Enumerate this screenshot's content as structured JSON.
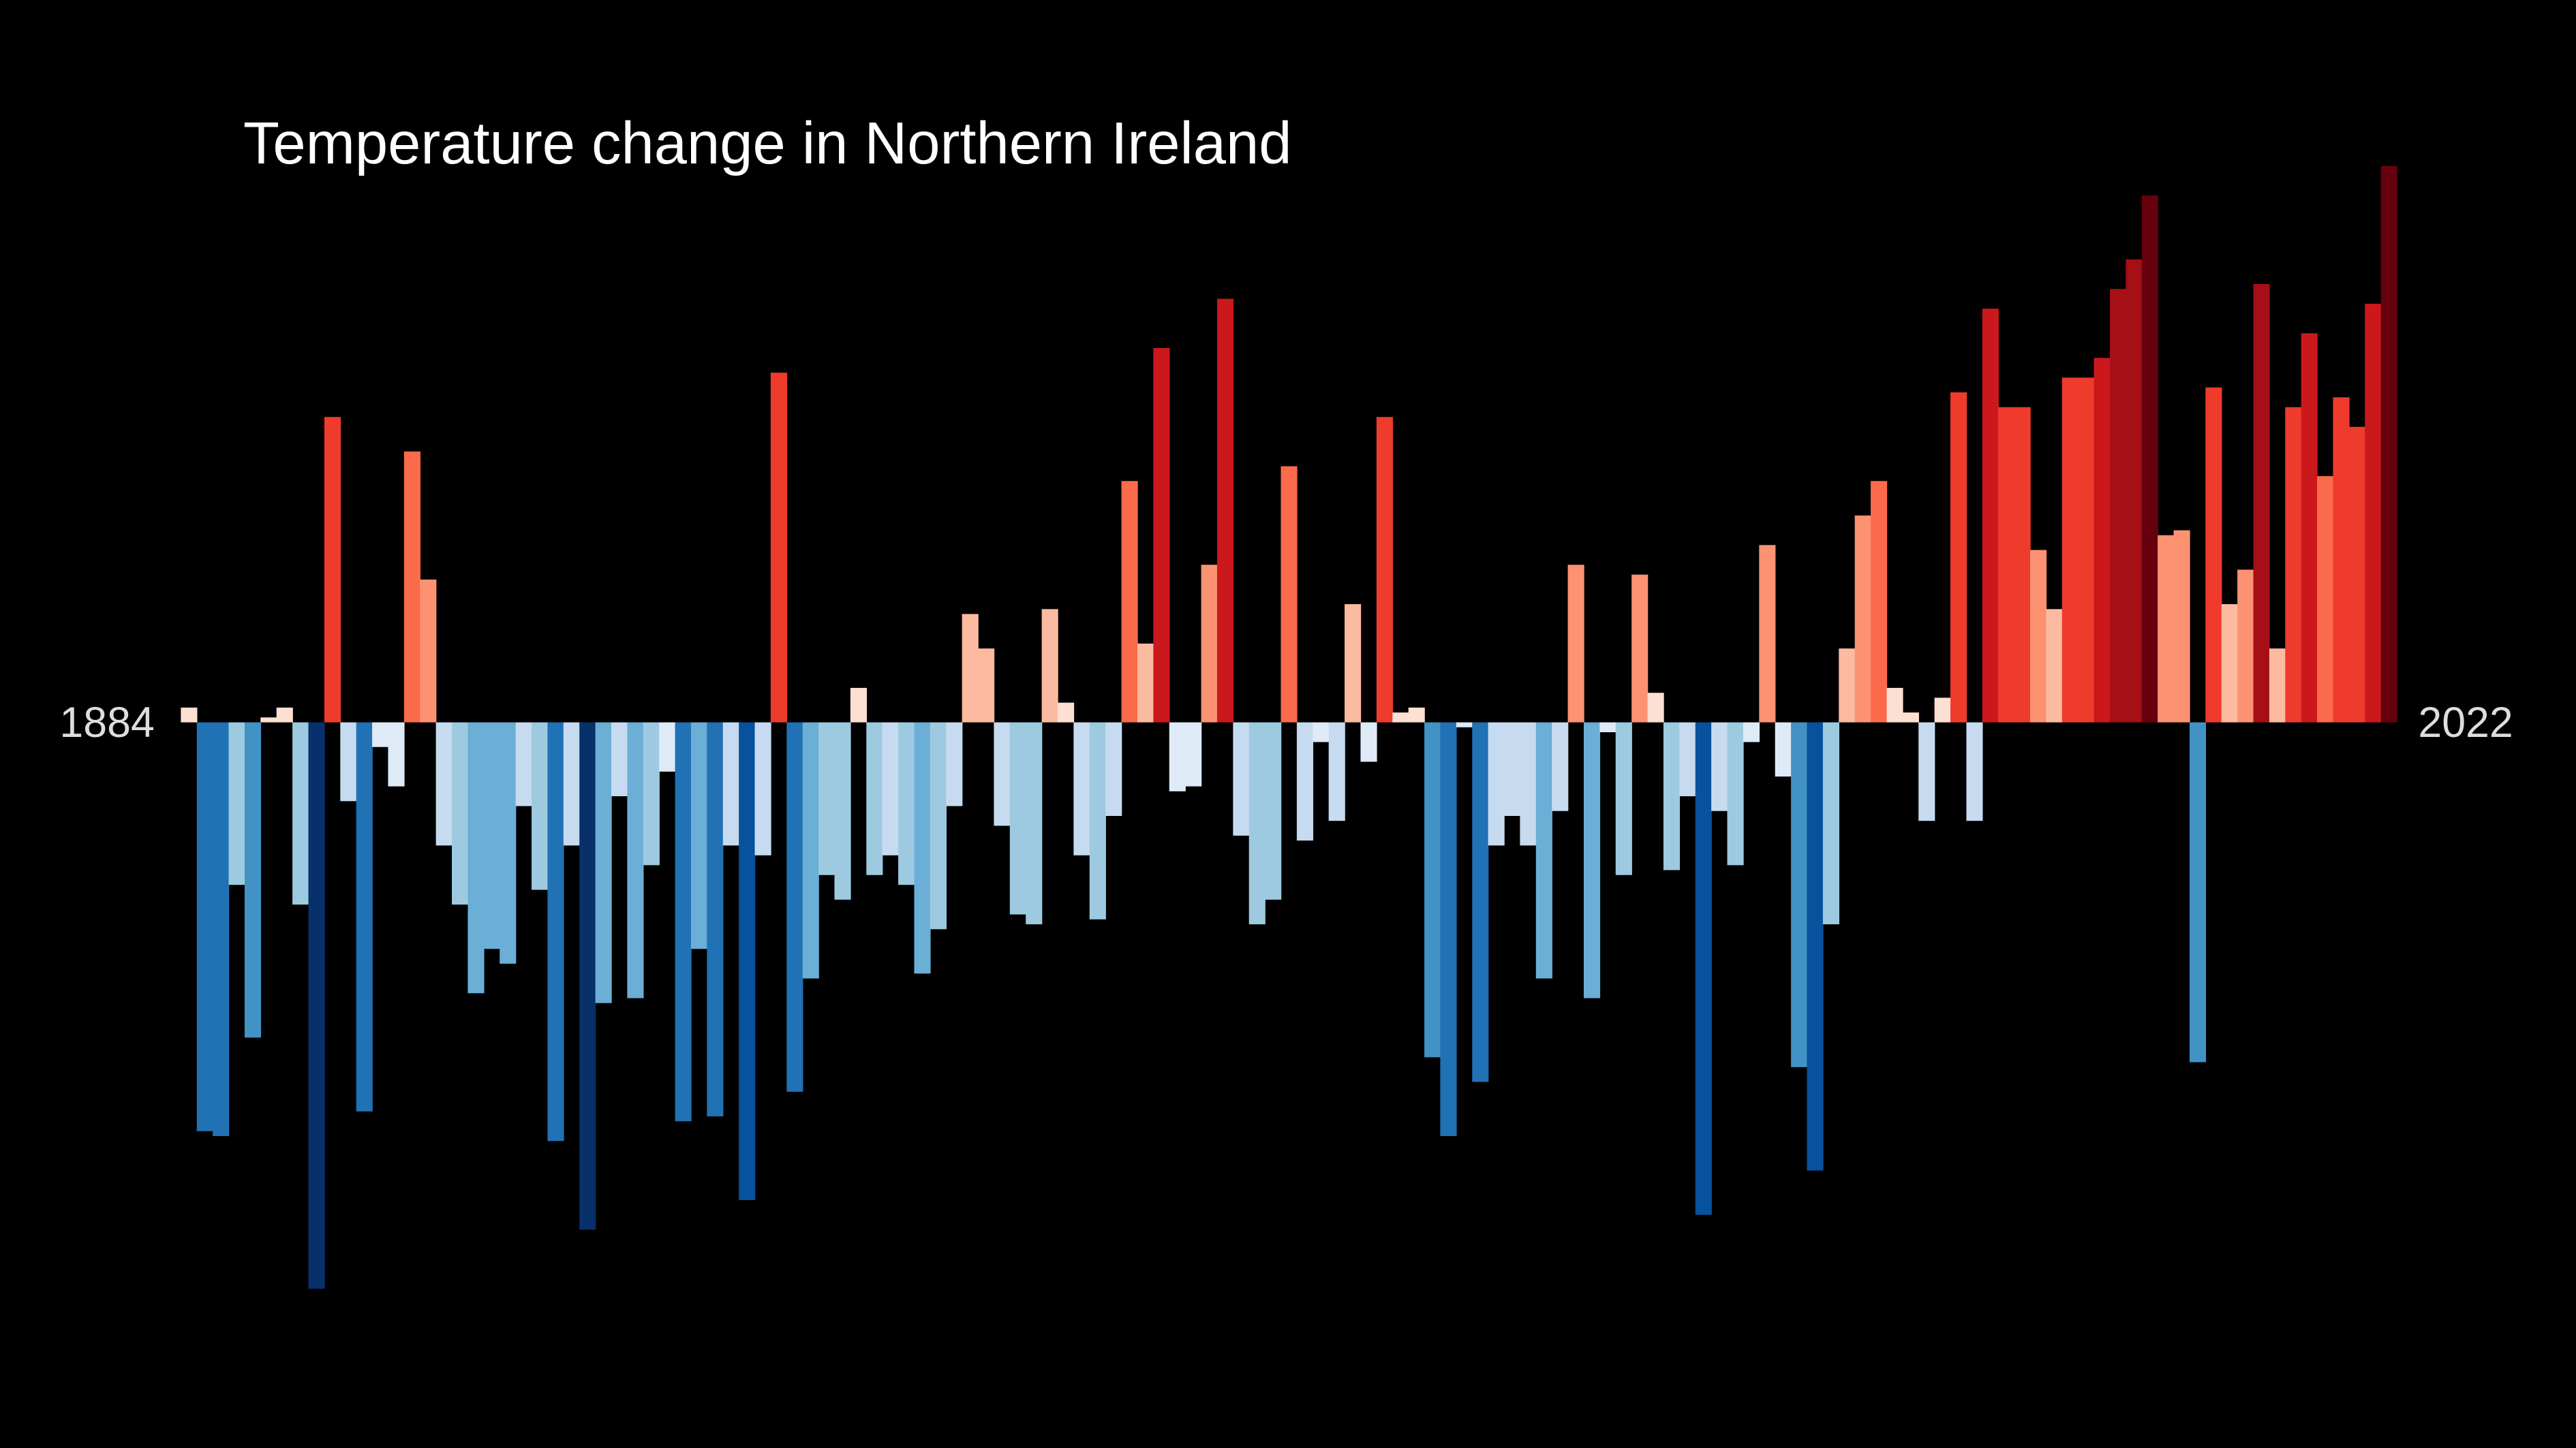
{
  "chart_data": {
    "type": "bar",
    "title": "Temperature change in Northern Ireland",
    "categories": [
      1884,
      null,
      null,
      null,
      null,
      null,
      null,
      null,
      null,
      null,
      null,
      null,
      null,
      null,
      null,
      null,
      null,
      null,
      null,
      null,
      null,
      null,
      null,
      null,
      null,
      null,
      null,
      null,
      null,
      null,
      null,
      null,
      null,
      null,
      null,
      null,
      null,
      null,
      null,
      null,
      null,
      null,
      null,
      null,
      null,
      null,
      null,
      null,
      null,
      null,
      null,
      null,
      null,
      null,
      null,
      null,
      null,
      null,
      null,
      null,
      null,
      null,
      null,
      null,
      null,
      null,
      null,
      null,
      null,
      null,
      null,
      null,
      null,
      null,
      null,
      null,
      null,
      null,
      null,
      null,
      null,
      null,
      null,
      null,
      null,
      null,
      null,
      null,
      null,
      null,
      null,
      null,
      null,
      null,
      null,
      null,
      null,
      null,
      null,
      null,
      null,
      null,
      null,
      null,
      null,
      null,
      null,
      null,
      null,
      null,
      null,
      null,
      null,
      null,
      null,
      null,
      null,
      null,
      null,
      null,
      null,
      null,
      null,
      null,
      null,
      null,
      null,
      null,
      null,
      null,
      null,
      null,
      null,
      null,
      null,
      null,
      null,
      null,
      2022
    ],
    "values": [
      0.03,
      -0.83,
      -0.84,
      -0.33,
      -0.64,
      0.01,
      0.03,
      -0.37,
      -1.15,
      0.62,
      -0.16,
      -0.79,
      -0.05,
      -0.13,
      0.55,
      0.29,
      -0.25,
      -0.37,
      -0.55,
      -0.46,
      -0.49,
      -0.17,
      -0.34,
      -0.85,
      -0.25,
      -1.03,
      -0.57,
      -0.15,
      -0.56,
      -0.29,
      -0.1,
      -0.81,
      -0.46,
      -0.8,
      -0.25,
      -0.97,
      -0.27,
      0.71,
      -0.75,
      -0.52,
      -0.31,
      -0.36,
      0.07,
      -0.31,
      -0.27,
      -0.33,
      -0.51,
      -0.42,
      -0.17,
      0.22,
      0.15,
      -0.21,
      -0.39,
      -0.41,
      0.23,
      0.04,
      -0.27,
      -0.4,
      -0.19,
      0.49,
      0.16,
      0.76,
      -0.14,
      -0.13,
      0.32,
      0.86,
      -0.23,
      -0.41,
      -0.36,
      0.52,
      -0.24,
      -0.04,
      -0.2,
      0.24,
      -0.08,
      0.62,
      0.02,
      0.03,
      -0.68,
      -0.84,
      -0.01,
      -0.73,
      -0.25,
      -0.19,
      -0.25,
      -0.52,
      -0.18,
      0.32,
      -0.56,
      -0.02,
      -0.31,
      0.3,
      0.06,
      -0.3,
      -0.15,
      -1.0,
      -0.18,
      -0.29,
      -0.04,
      0.36,
      -0.11,
      -0.7,
      -0.91,
      -0.41,
      0.15,
      0.42,
      0.49,
      0.07,
      0.02,
      -0.2,
      0.05,
      0.67,
      -0.2,
      0.84,
      0.64,
      0.64,
      0.35,
      0.23,
      0.7,
      0.7,
      0.74,
      0.88,
      0.94,
      1.07,
      0.38,
      0.39,
      -0.69,
      0.68,
      0.24,
      0.31,
      0.89,
      0.15,
      0.64,
      0.79,
      0.5,
      0.66,
      0.6,
      0.85,
      1.13
    ],
    "colors": [
      "#08306b",
      "#08519c",
      "#2171b5",
      "#4292c6",
      "#6baed6",
      "#9ecae1",
      "#c6dbef",
      "#deebf7",
      "#fee0d2",
      "#fcbba1",
      "#fc9272",
      "#fb6a4a",
      "#ef3b2c",
      "#cb181d",
      "#a50f15",
      "#67000d"
    ]
  }
}
